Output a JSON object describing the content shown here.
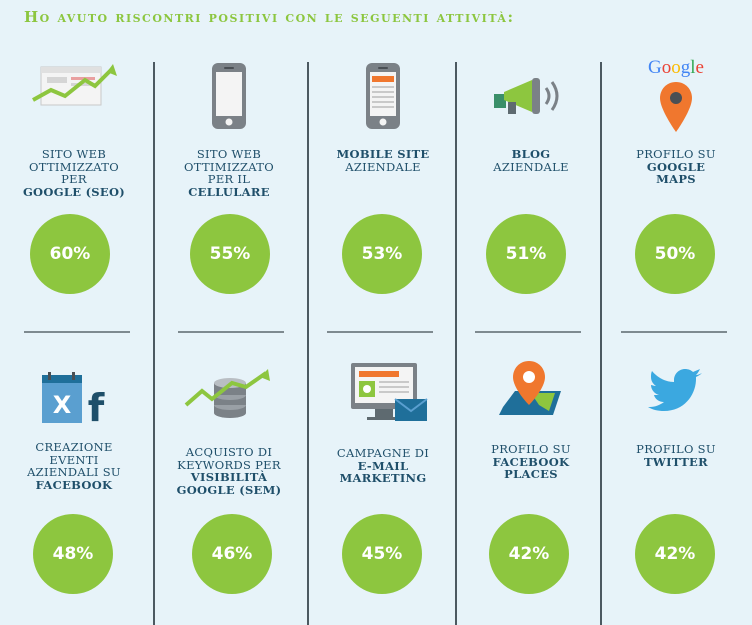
{
  "title": "Ho avuto riscontri positivi con le seguenti attività:",
  "colors": {
    "accent": "#8dc63f",
    "text": "#1f4f6a",
    "background": "#e7f3f9"
  },
  "row1": [
    {
      "icon": "seo-chart-icon",
      "lines": [
        {
          "t": "Sito web",
          "b": false
        },
        {
          "t": "ottimizzato",
          "b": false
        },
        {
          "t": "per",
          "b": false
        },
        {
          "t": "Google (SEO)",
          "b": true
        }
      ],
      "value": "60%"
    },
    {
      "icon": "smartphone-icon",
      "lines": [
        {
          "t": "Sito web",
          "b": false
        },
        {
          "t": "ottimizzato",
          "b": false
        },
        {
          "t": "per il",
          "b": false
        },
        {
          "t": "cellulare",
          "b": true
        }
      ],
      "value": "55%"
    },
    {
      "icon": "mobile-site-icon",
      "lines": [
        {
          "t": "Mobile site",
          "b": true
        },
        {
          "t": "aziendale",
          "b": false
        }
      ],
      "value": "53%"
    },
    {
      "icon": "megaphone-icon",
      "lines": [
        {
          "t": "Blog",
          "b": true
        },
        {
          "t": "aziendale",
          "b": false
        }
      ],
      "value": "51%"
    },
    {
      "icon": "google-maps-pin-icon",
      "lines": [
        {
          "t": "Profilo su",
          "b": false
        },
        {
          "t": "Google",
          "b": true
        },
        {
          "t": "Maps",
          "b": true
        }
      ],
      "value": "50%",
      "logo_text": "Google"
    }
  ],
  "row2": [
    {
      "icon": "calendar-facebook-icon",
      "lines": [
        {
          "t": "Creazione",
          "b": false
        },
        {
          "t": "eventi",
          "b": false
        },
        {
          "t": "aziendali su",
          "b": false
        },
        {
          "t": "Facebook",
          "b": true
        }
      ],
      "value": "48%"
    },
    {
      "icon": "coins-chart-icon",
      "lines": [
        {
          "t": "Acquisto di",
          "b": false
        },
        {
          "t": "keywords per",
          "b": false
        },
        {
          "t": "visibilità",
          "b": true
        },
        {
          "t": "Google (SEM)",
          "b": true
        }
      ],
      "value": "46%"
    },
    {
      "icon": "email-campaign-icon",
      "lines": [
        {
          "t": "Campagne di",
          "b": false
        },
        {
          "t": "e-mail",
          "b": true
        },
        {
          "t": "marketing",
          "b": true
        }
      ],
      "value": "45%"
    },
    {
      "icon": "map-pin-icon",
      "lines": [
        {
          "t": "Profilo su",
          "b": false
        },
        {
          "t": "Facebook",
          "b": true
        },
        {
          "t": "places",
          "b": true
        }
      ],
      "value": "42%"
    },
    {
      "icon": "twitter-bird-icon",
      "lines": [
        {
          "t": "Profilo su",
          "b": false
        },
        {
          "t": "Twitter",
          "b": true
        }
      ],
      "value": "42%"
    }
  ]
}
